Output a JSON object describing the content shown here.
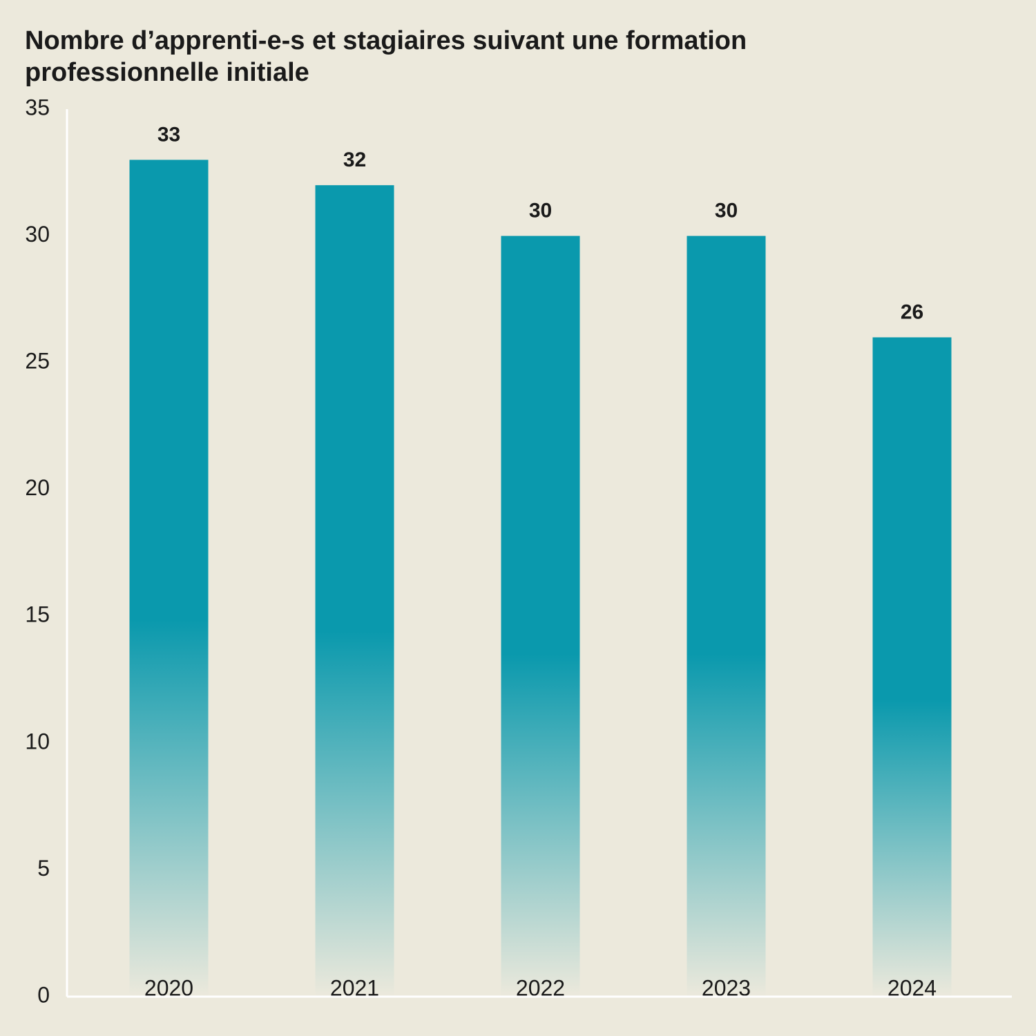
{
  "chart_data": {
    "type": "bar",
    "title": "Nombre d’apprenti-e-s et stagiaires suivant une formation professionnelle initiale",
    "categories": [
      "2020",
      "2021",
      "2022",
      "2023",
      "2024"
    ],
    "values": [
      33,
      32,
      30,
      30,
      26
    ],
    "color": "#0a99ad",
    "ylim": [
      0,
      35
    ],
    "yticks": [
      0,
      5,
      10,
      15,
      20,
      25,
      30,
      35
    ]
  }
}
